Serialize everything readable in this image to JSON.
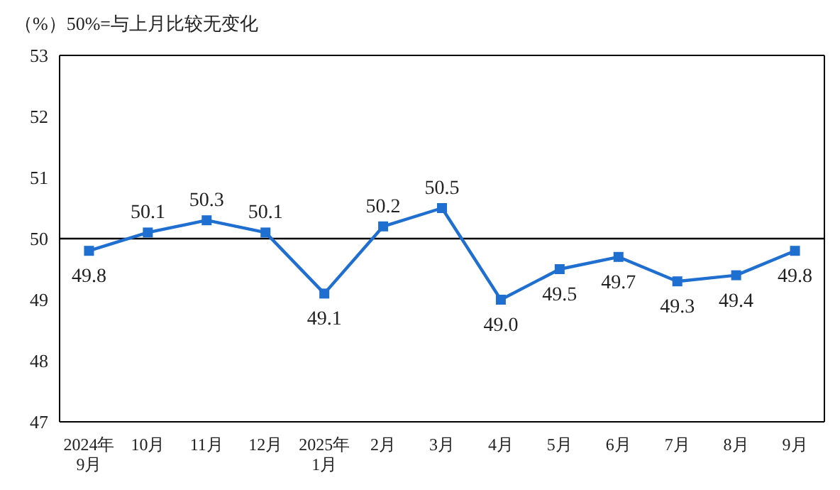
{
  "chart_data": {
    "type": "line",
    "ylabel": "（%）",
    "annotations": [
      "50%=与上月比较无变化"
    ],
    "categories": [
      "2024年\n9月",
      "10月",
      "11月",
      "12月",
      "2025年\n1月",
      "2月",
      "3月",
      "4月",
      "5月",
      "6月",
      "7月",
      "8月",
      "9月"
    ],
    "series": [
      {
        "color": "#1f6fd1",
        "values": [
          49.8,
          50.1,
          50.3,
          50.1,
          49.1,
          50.2,
          50.5,
          49.0,
          49.5,
          49.7,
          49.3,
          49.4,
          49.8
        ],
        "value_labels": [
          "49.8",
          "50.1",
          "50.3",
          "50.1",
          "49.1",
          "50.2",
          "50.5",
          "49.0",
          "49.5",
          "49.7",
          "49.3",
          "49.4",
          "49.8"
        ]
      }
    ],
    "ylim": [
      47,
      53
    ],
    "yticks": [
      47,
      48,
      49,
      50,
      51,
      52,
      53
    ],
    "ref_lines": [
      {
        "axis": "y",
        "value": 50,
        "color": "#000000"
      }
    ],
    "grid": false,
    "marker": "square",
    "line_style": "solid"
  }
}
